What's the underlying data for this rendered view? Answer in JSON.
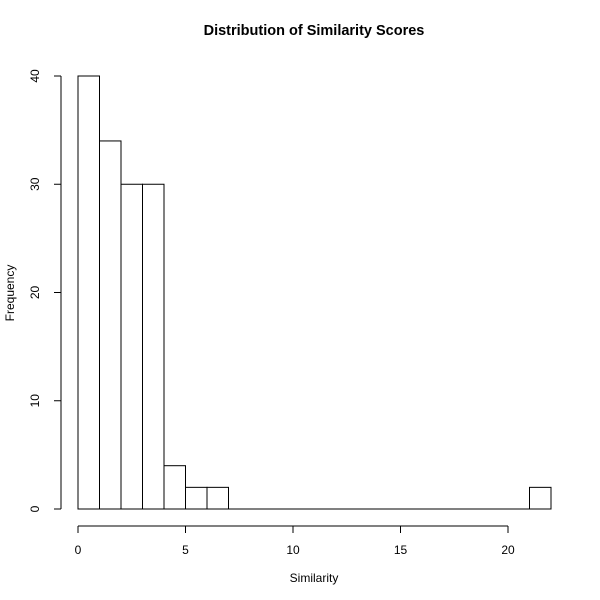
{
  "chart_data": {
    "type": "bar",
    "title": "Distribution of Similarity Scores",
    "xlabel": "Similarity",
    "ylabel": "Frequency",
    "bin_edges": [
      0,
      1,
      2,
      3,
      4,
      5,
      6,
      7,
      8,
      9,
      10,
      11,
      12,
      13,
      14,
      15,
      16,
      17,
      18,
      19,
      20,
      21,
      22
    ],
    "values": [
      40,
      34,
      30,
      30,
      4,
      2,
      2,
      0,
      0,
      0,
      0,
      0,
      0,
      0,
      0,
      0,
      0,
      0,
      0,
      0,
      0,
      2
    ],
    "xlim": [
      0,
      22
    ],
    "ylim": [
      0,
      40
    ],
    "x_ticks": [
      0,
      5,
      10,
      15,
      20
    ],
    "y_ticks": [
      0,
      10,
      20,
      30,
      40
    ],
    "grid": false,
    "bar_fill": "#ffffff",
    "bar_stroke": "#000000"
  }
}
